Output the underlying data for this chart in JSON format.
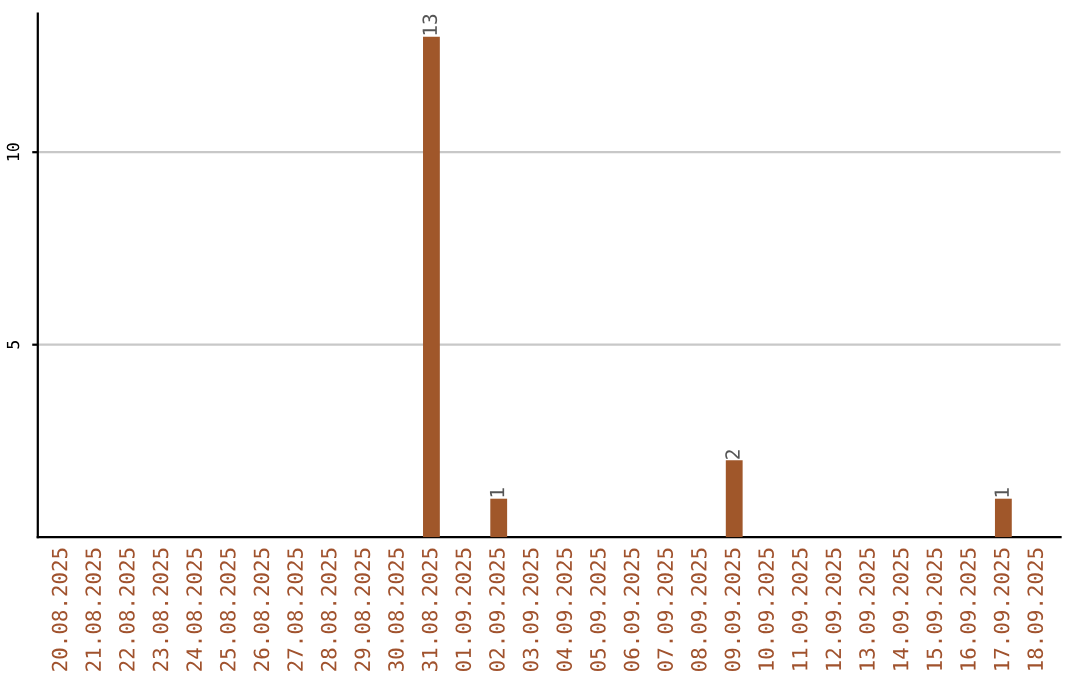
{
  "chart_data": {
    "type": "bar",
    "categories": [
      "20.08.2025",
      "21.08.2025",
      "22.08.2025",
      "23.08.2025",
      "24.08.2025",
      "25.08.2025",
      "26.08.2025",
      "27.08.2025",
      "28.08.2025",
      "29.08.2025",
      "30.08.2025",
      "31.08.2025",
      "01.09.2025",
      "02.09.2025",
      "03.09.2025",
      "04.09.2025",
      "05.09.2025",
      "06.09.2025",
      "07.09.2025",
      "08.09.2025",
      "09.09.2025",
      "10.09.2025",
      "11.09.2025",
      "12.09.2025",
      "13.09.2025",
      "14.09.2025",
      "15.09.2025",
      "16.09.2025",
      "17.09.2025",
      "18.09.2025"
    ],
    "values": [
      0,
      0,
      0,
      0,
      0,
      0,
      0,
      0,
      0,
      0,
      0,
      13,
      0,
      1,
      0,
      0,
      0,
      0,
      0,
      0,
      2,
      0,
      0,
      0,
      0,
      0,
      0,
      0,
      1,
      0
    ],
    "value_labels": [
      null,
      null,
      null,
      null,
      null,
      null,
      null,
      null,
      null,
      null,
      null,
      "13",
      null,
      "1",
      null,
      null,
      null,
      null,
      null,
      null,
      "2",
      null,
      null,
      null,
      null,
      null,
      null,
      null,
      "1",
      null
    ],
    "color": "#a0572a",
    "ylim": [
      0,
      13.6
    ],
    "yticks": [
      5,
      10
    ],
    "grid": "y"
  }
}
